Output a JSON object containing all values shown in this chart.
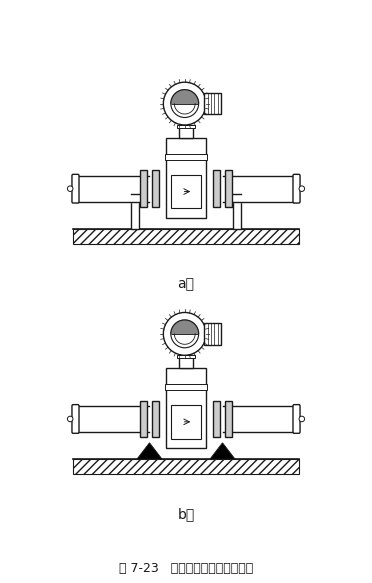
{
  "title": "图 7-23   管道振动时安装固定支架",
  "label_a": "a）",
  "label_b": "b）",
  "bg_color": "#ffffff",
  "line_color": "#1a1a1a",
  "fig_width": 3.72,
  "fig_height": 5.83,
  "dpi": 100
}
